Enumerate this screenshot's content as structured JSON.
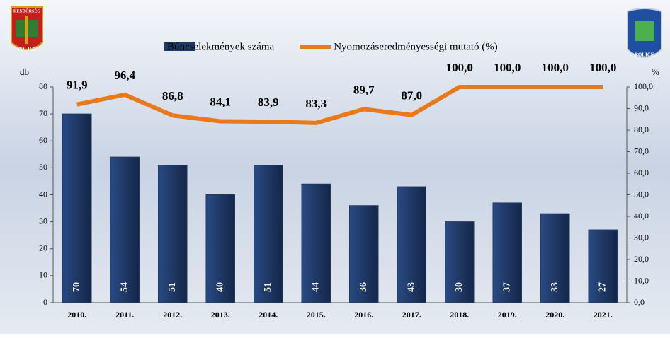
{
  "chart_data": {
    "type": "bar",
    "categories": [
      "2010.",
      "2011.",
      "2012.",
      "2013.",
      "2014.",
      "2015.",
      "2016.",
      "2017.",
      "2018.",
      "2019.",
      "2020.",
      "2021."
    ],
    "series": [
      {
        "name": "Bűncselekmények száma",
        "type": "bar",
        "color": "#1f3864",
        "values": [
          70,
          54,
          51,
          40,
          51,
          44,
          36,
          43,
          30,
          37,
          33,
          27
        ]
      },
      {
        "name": "Nyomozáseredményességi mutató (%)",
        "type": "line",
        "axis": "y2",
        "color": "#e97a1a",
        "values": [
          91.9,
          96.4,
          86.8,
          84.1,
          83.9,
          83.3,
          89.7,
          87.0,
          100.0,
          100.0,
          100.0,
          100.0
        ],
        "value_labels": [
          "91,9",
          "96,4",
          "86,8",
          "84,1",
          "83,9",
          "83,3",
          "89,7",
          "87,0",
          "100,0",
          "100,0",
          "100,0",
          "100,0"
        ]
      }
    ],
    "ylabel": "db",
    "y2label": "%",
    "ylim": [
      0,
      80
    ],
    "yticks": [
      0,
      10,
      20,
      30,
      40,
      50,
      60,
      70,
      80
    ],
    "y2lim": [
      0,
      100
    ],
    "y2ticks": [
      {
        "value": 0,
        "label": "0,0"
      },
      {
        "value": 10,
        "label": "10,0"
      },
      {
        "value": 20,
        "label": "20,0"
      },
      {
        "value": 30,
        "label": "30,0"
      },
      {
        "value": 40,
        "label": "40,0"
      },
      {
        "value": 50,
        "label": "50,0"
      },
      {
        "value": 60,
        "label": "60,0"
      },
      {
        "value": 70,
        "label": "70,0"
      },
      {
        "value": 80,
        "label": "80,0"
      },
      {
        "value": 90,
        "label": "90,0"
      },
      {
        "value": 100,
        "label": "100,0"
      }
    ]
  },
  "left_logo": {
    "top": "RENDŐRSÉG",
    "bottom": "POLICE"
  },
  "right_logo": {
    "bottom": "POLICE"
  }
}
